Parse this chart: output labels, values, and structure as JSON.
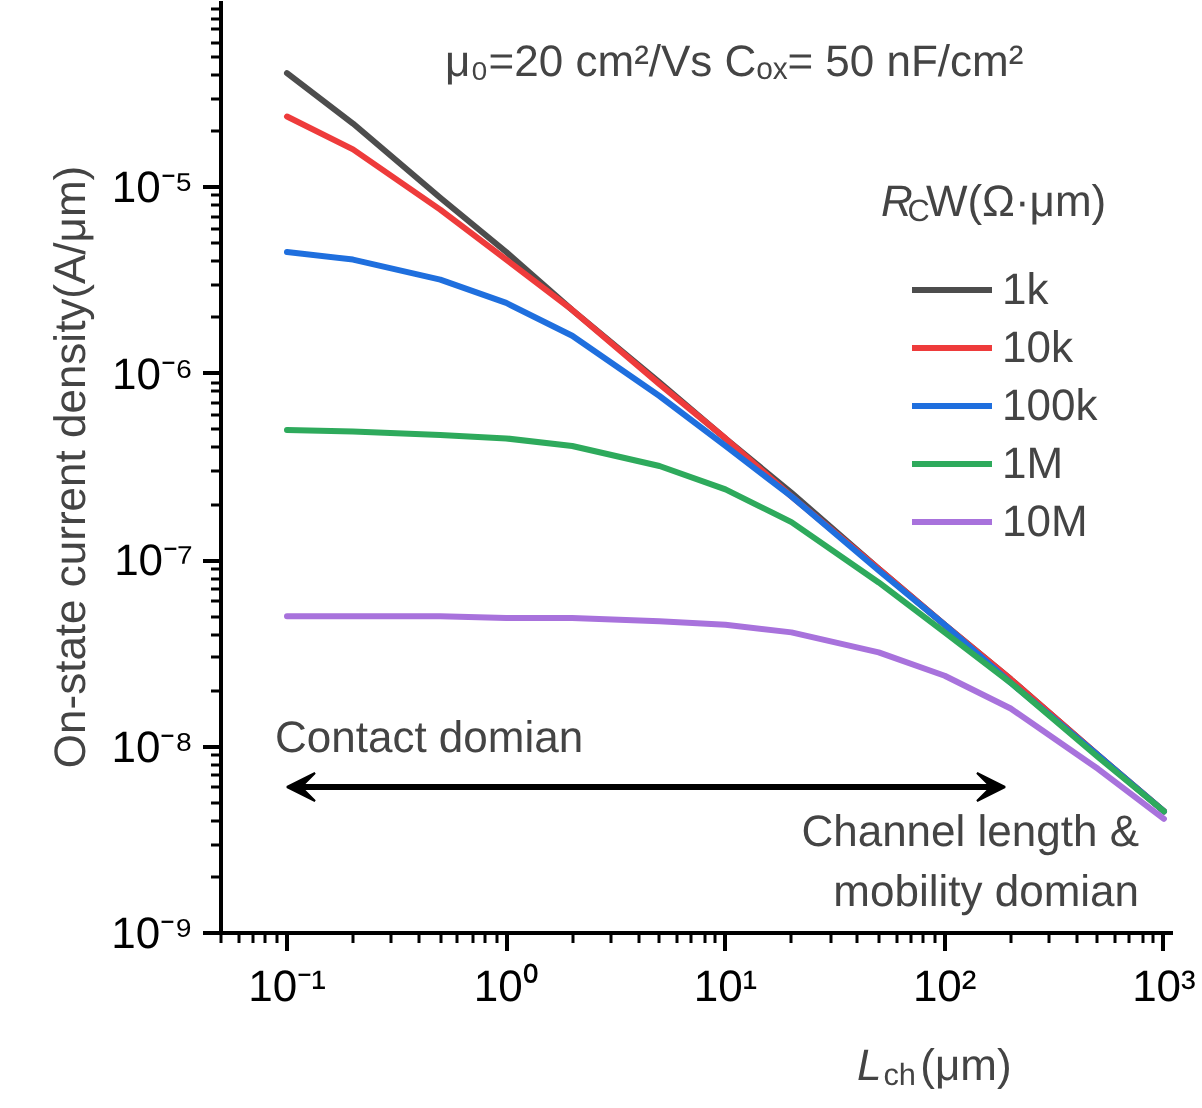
{
  "chart_data": {
    "type": "line",
    "title": "μ₀=20 cm²/Vs  Cₒₓ= 50 nF/cm²",
    "xlabel": "L$_{ch}$(μm)",
    "ylabel": "On-state current density(A/μm)",
    "legend_title": "R$_{C}$W(Ω·μm)",
    "x": [
      0.1,
      0.2,
      0.5,
      1,
      2,
      5,
      10,
      20,
      50,
      100,
      200,
      500,
      1000
    ],
    "series": [
      {
        "name": "1k",
        "color": "#4d4d4d",
        "values": [
          4.1e-05,
          2.2e-05,
          8.8e-06,
          4.5e-06,
          2.2e-06,
          9e-07,
          4.5e-07,
          2.3e-07,
          9e-08,
          4.5e-08,
          2.3e-08,
          9e-09,
          4.5e-09
        ]
      },
      {
        "name": "10k",
        "color": "#ee3b3b",
        "values": [
          2.4e-05,
          1.6e-05,
          7.6e-06,
          4.1e-06,
          2.2e-06,
          8.8e-07,
          4.5e-07,
          2.2e-07,
          9e-08,
          4.5e-08,
          2.3e-08,
          9e-09,
          4.5e-09
        ]
      },
      {
        "name": "100k",
        "color": "#1f6fde",
        "values": [
          4.5e-06,
          4.1e-06,
          3.2e-06,
          2.4e-06,
          1.6e-06,
          7.6e-07,
          4.1e-07,
          2.2e-07,
          8.8e-08,
          4.5e-08,
          2.2e-08,
          9e-09,
          4.5e-09
        ]
      },
      {
        "name": "1M",
        "color": "#2eaa5c",
        "values": [
          5e-07,
          4.9e-07,
          4.7e-07,
          4.5e-07,
          4.1e-07,
          3.2e-07,
          2.4e-07,
          1.6e-07,
          7.6e-08,
          4.1e-08,
          2.2e-08,
          8.8e-09,
          4.5e-09
        ]
      },
      {
        "name": "10M",
        "color": "#a872dc",
        "values": [
          5e-08,
          5e-08,
          5e-08,
          4.9e-08,
          4.9e-08,
          4.7e-08,
          4.5e-08,
          4.1e-08,
          3.2e-08,
          2.4e-08,
          1.6e-08,
          7.6e-09,
          4.1e-09
        ]
      }
    ],
    "annotations": [
      "Contact domian",
      "Channel length &\nmobility domian"
    ],
    "log": "xy",
    "xlim": [
      0.05,
      1100
    ],
    "ylim": [
      1e-09,
      0.0001
    ],
    "xticks": [
      {
        "value": 0.1,
        "label": "10⁻¹"
      },
      {
        "value": 1,
        "label": "10⁰"
      },
      {
        "value": 10,
        "label": "10¹"
      },
      {
        "value": 100,
        "label": "10²"
      },
      {
        "value": 1000,
        "label": "10³"
      }
    ],
    "yticks": [
      {
        "value": 1e-09,
        "label": "10⁻⁹"
      },
      {
        "value": 1e-08,
        "label": "10⁻⁸"
      },
      {
        "value": 1e-07,
        "label": "10⁻⁷"
      },
      {
        "value": 1e-06,
        "label": "10⁻⁶"
      },
      {
        "value": 1e-05,
        "label": "10⁻⁵"
      }
    ],
    "grid": false,
    "legend": "right",
    "marker": "none",
    "line_style": "solid"
  }
}
